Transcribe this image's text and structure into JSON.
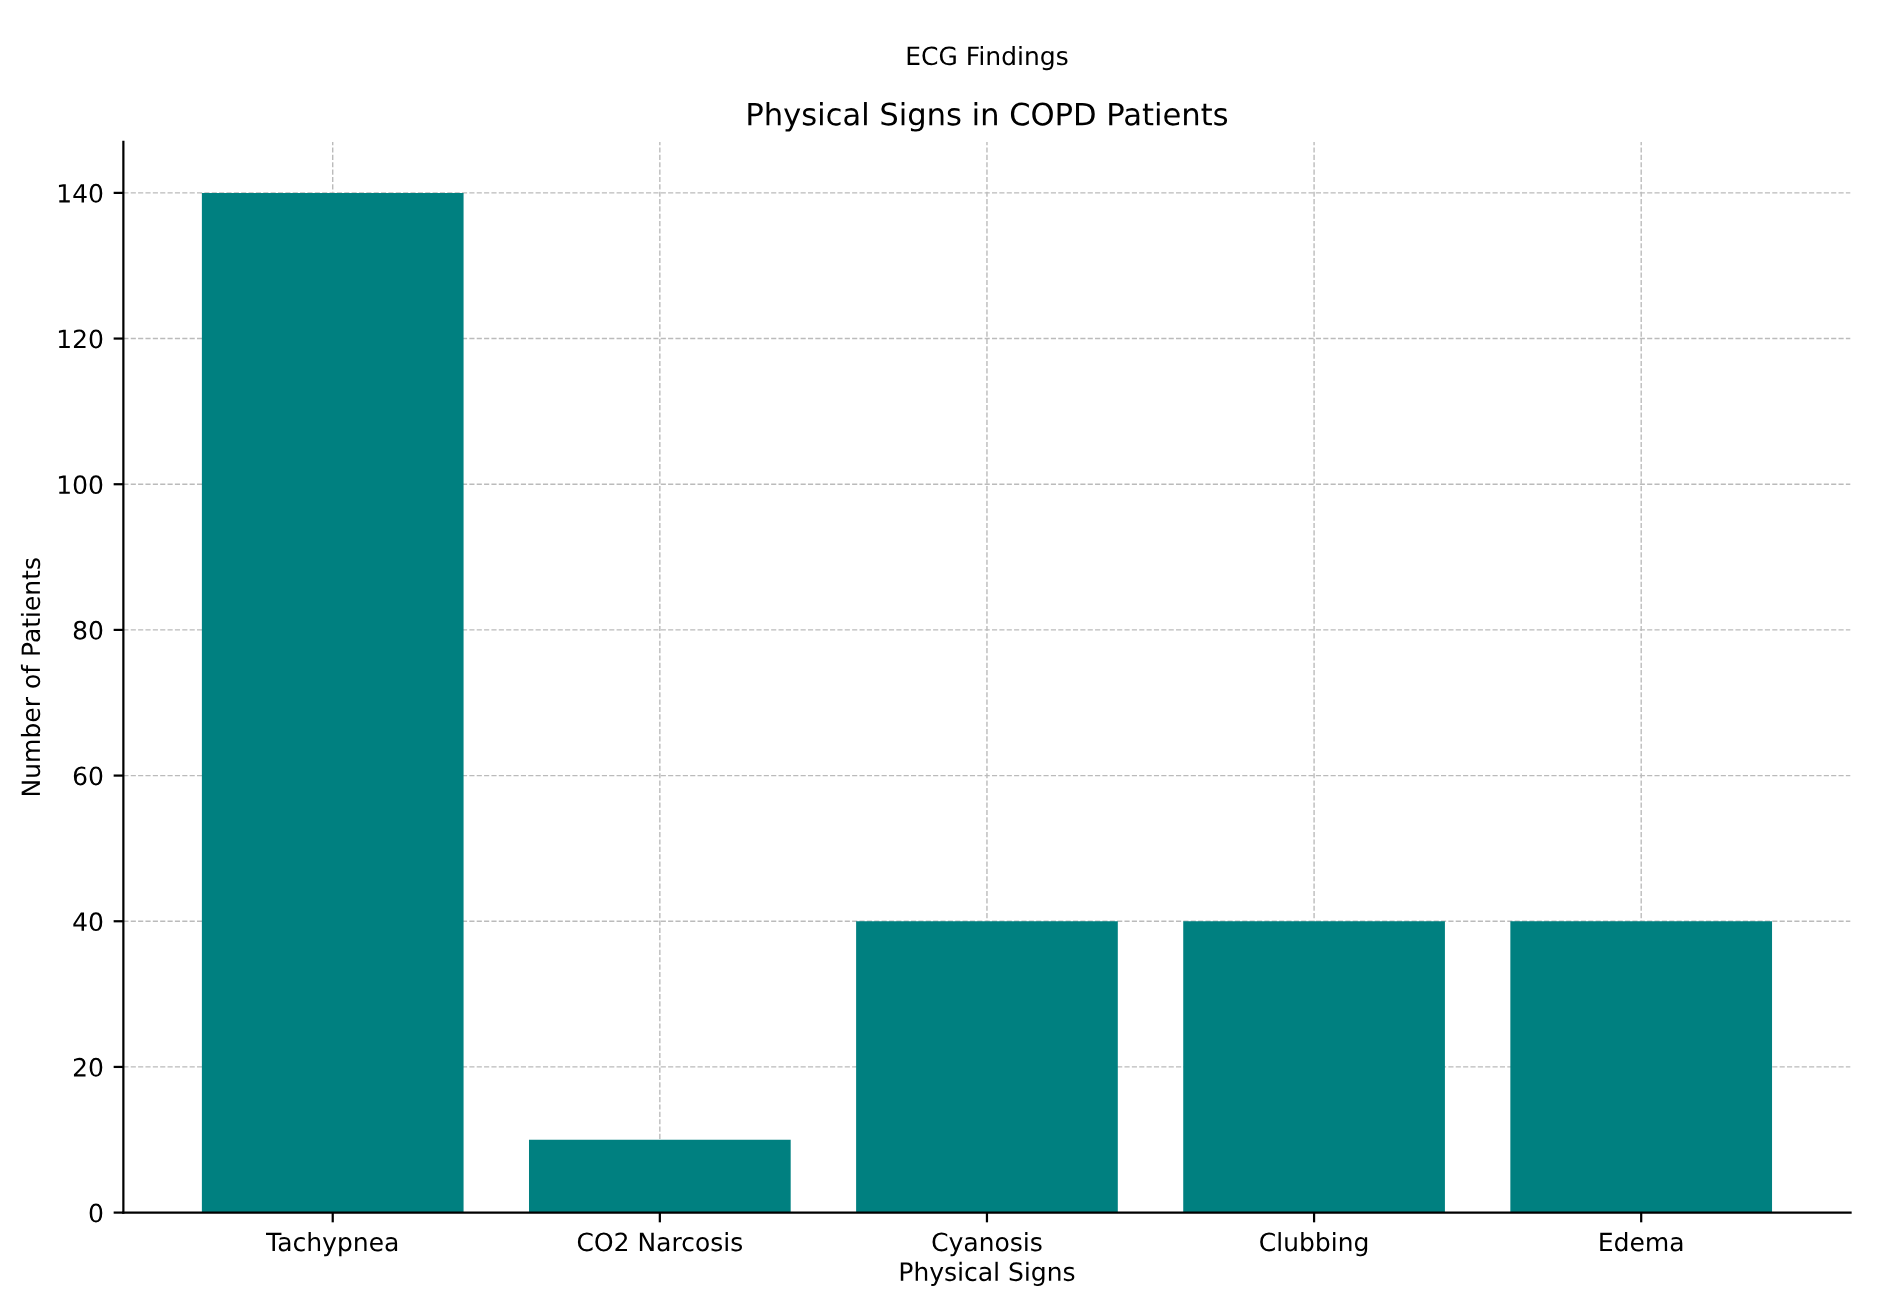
{
  "chart_data": {
    "type": "bar",
    "title": "Physical Signs in COPD Patients",
    "xlabel": "Physical Signs",
    "ylabel": "Number of Patients",
    "annotations": [
      "ECG Findings"
    ],
    "categories": [
      "Tachypnea",
      "CO2 Narcosis",
      "Cyanosis",
      "Clubbing",
      "Edema"
    ],
    "values": [
      140,
      10,
      40,
      40,
      40
    ],
    "color": "#008080",
    "ylim": [
      0,
      147
    ],
    "yticks": [
      0,
      20,
      40,
      60,
      80,
      100,
      120,
      140
    ],
    "grid": true
  }
}
